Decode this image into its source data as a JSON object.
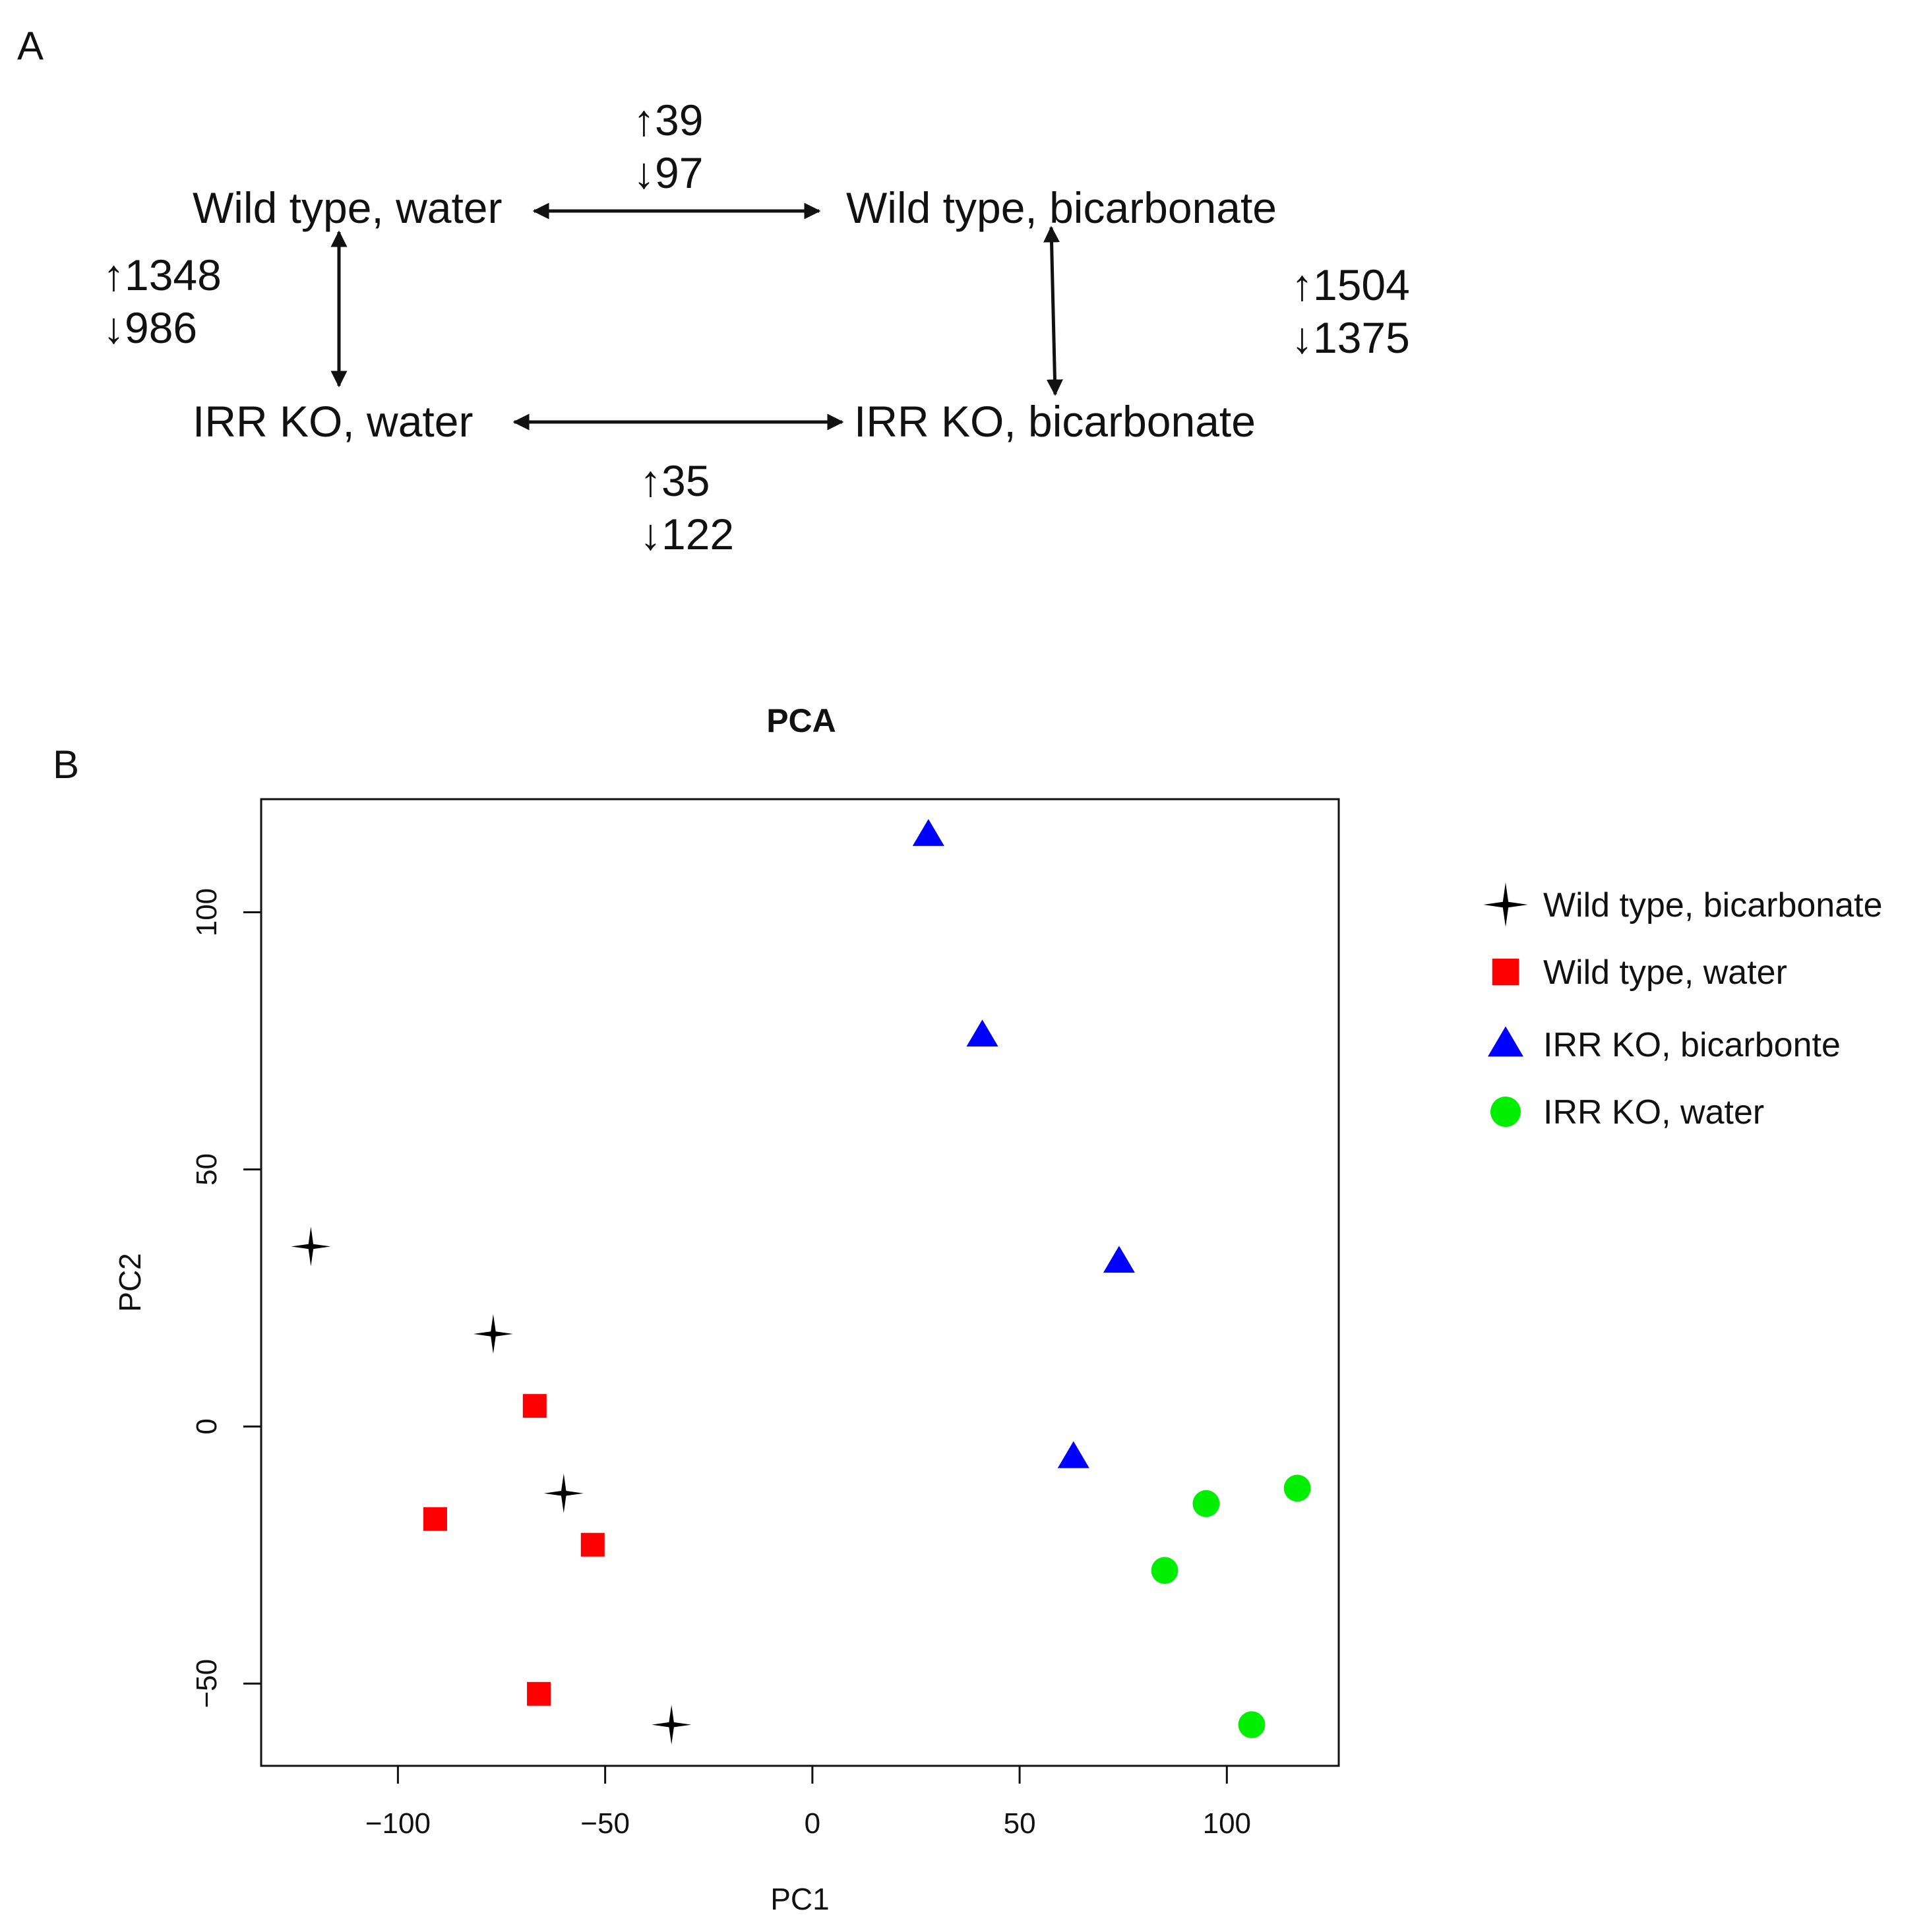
{
  "panel_a": {
    "label": "A",
    "nodes": {
      "wt_water": "Wild type, water",
      "wt_bicarb": "Wild type, bicarbonate",
      "ko_water": "IRR KO, water",
      "ko_bicarb": "IRR KO, bicarbonate"
    },
    "comparisons": {
      "top": {
        "up": "↑39",
        "down": "↓97"
      },
      "left": {
        "up": "↑1348",
        "down": "↓986"
      },
      "right": {
        "up": "↑1504",
        "down": "↓1375"
      },
      "bottom": {
        "up": "↑35",
        "down": "↓122"
      }
    }
  },
  "panel_b": {
    "label": "B"
  },
  "chart_data": {
    "type": "scatter",
    "title": "PCA",
    "xlabel": "PC1",
    "ylabel": "PC2",
    "xlim": [
      -133,
      127
    ],
    "ylim": [
      -66,
      122
    ],
    "xticks": [
      -100,
      -50,
      0,
      50,
      100
    ],
    "yticks": [
      -50,
      0,
      50,
      100
    ],
    "legend_position": "right",
    "series": [
      {
        "name": "Wild type, bicarbonate",
        "marker": "star4",
        "color": "#000000",
        "points": [
          [
            -121,
            35
          ],
          [
            -77,
            18
          ],
          [
            -60,
            -13
          ],
          [
            -34,
            -58
          ]
        ]
      },
      {
        "name": "Wild type, water",
        "marker": "square",
        "color": "#ff0000",
        "points": [
          [
            -67,
            4
          ],
          [
            -91,
            -18
          ],
          [
            -53,
            -23
          ],
          [
            -66,
            -52
          ]
        ]
      },
      {
        "name": "IRR KO, bicarbonte",
        "marker": "triangle",
        "color": "#0000ff",
        "points": [
          [
            28,
            115
          ],
          [
            41,
            76
          ],
          [
            74,
            32
          ],
          [
            63,
            -6
          ]
        ]
      },
      {
        "name": "IRR KO, water",
        "marker": "circle",
        "color": "#00ee00",
        "points": [
          [
            95,
            -15
          ],
          [
            117,
            -12
          ],
          [
            85,
            -28
          ],
          [
            106,
            -58
          ]
        ]
      }
    ]
  }
}
